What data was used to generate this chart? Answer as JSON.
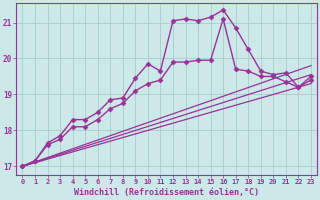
{
  "xlabel": "Windchill (Refroidissement éolien,°C)",
  "background_color": "#cce8e8",
  "grid_color": "#aacccc",
  "line_color": "#993399",
  "xlim": [
    -0.5,
    23.5
  ],
  "ylim": [
    16.75,
    21.55
  ],
  "yticks": [
    17,
    18,
    19,
    20,
    21
  ],
  "xticks": [
    0,
    1,
    2,
    3,
    4,
    5,
    6,
    7,
    8,
    9,
    10,
    11,
    12,
    13,
    14,
    15,
    16,
    17,
    18,
    19,
    20,
    21,
    22,
    23
  ],
  "series": [
    {
      "x": [
        0,
        1,
        2,
        3,
        4,
        5,
        6,
        7,
        8,
        9,
        10,
        11,
        12,
        13,
        14,
        15,
        16,
        17,
        18,
        19,
        20,
        21,
        22,
        23
      ],
      "y": [
        17.0,
        17.15,
        17.65,
        17.85,
        18.3,
        18.3,
        18.5,
        18.85,
        18.9,
        19.45,
        19.85,
        19.65,
        21.05,
        21.1,
        21.05,
        21.15,
        21.35,
        20.85,
        20.25,
        19.65,
        19.55,
        19.6,
        19.2,
        19.5
      ],
      "marker": "D",
      "markersize": 2.5,
      "linewidth": 1.0,
      "has_markers": true
    },
    {
      "x": [
        0,
        1,
        2,
        3,
        4,
        5,
        6,
        7,
        8,
        9,
        10,
        11,
        12,
        13,
        14,
        15,
        16,
        17,
        18,
        19,
        20,
        21,
        22,
        23
      ],
      "y": [
        17.0,
        17.15,
        17.6,
        17.75,
        18.1,
        18.1,
        18.3,
        18.6,
        18.75,
        19.1,
        19.3,
        19.4,
        19.9,
        19.9,
        19.95,
        19.95,
        21.1,
        19.7,
        19.65,
        19.5,
        19.5,
        19.35,
        19.2,
        19.4
      ],
      "marker": "D",
      "markersize": 2.5,
      "linewidth": 1.0,
      "has_markers": true
    },
    {
      "x": [
        0,
        23
      ],
      "y": [
        17.0,
        19.8
      ],
      "marker": null,
      "markersize": 0,
      "linewidth": 0.9,
      "has_markers": false
    },
    {
      "x": [
        0,
        23
      ],
      "y": [
        17.0,
        19.55
      ],
      "marker": null,
      "markersize": 0,
      "linewidth": 0.9,
      "has_markers": false
    },
    {
      "x": [
        0,
        23
      ],
      "y": [
        17.0,
        19.3
      ],
      "marker": null,
      "markersize": 0,
      "linewidth": 0.9,
      "has_markers": false
    }
  ]
}
